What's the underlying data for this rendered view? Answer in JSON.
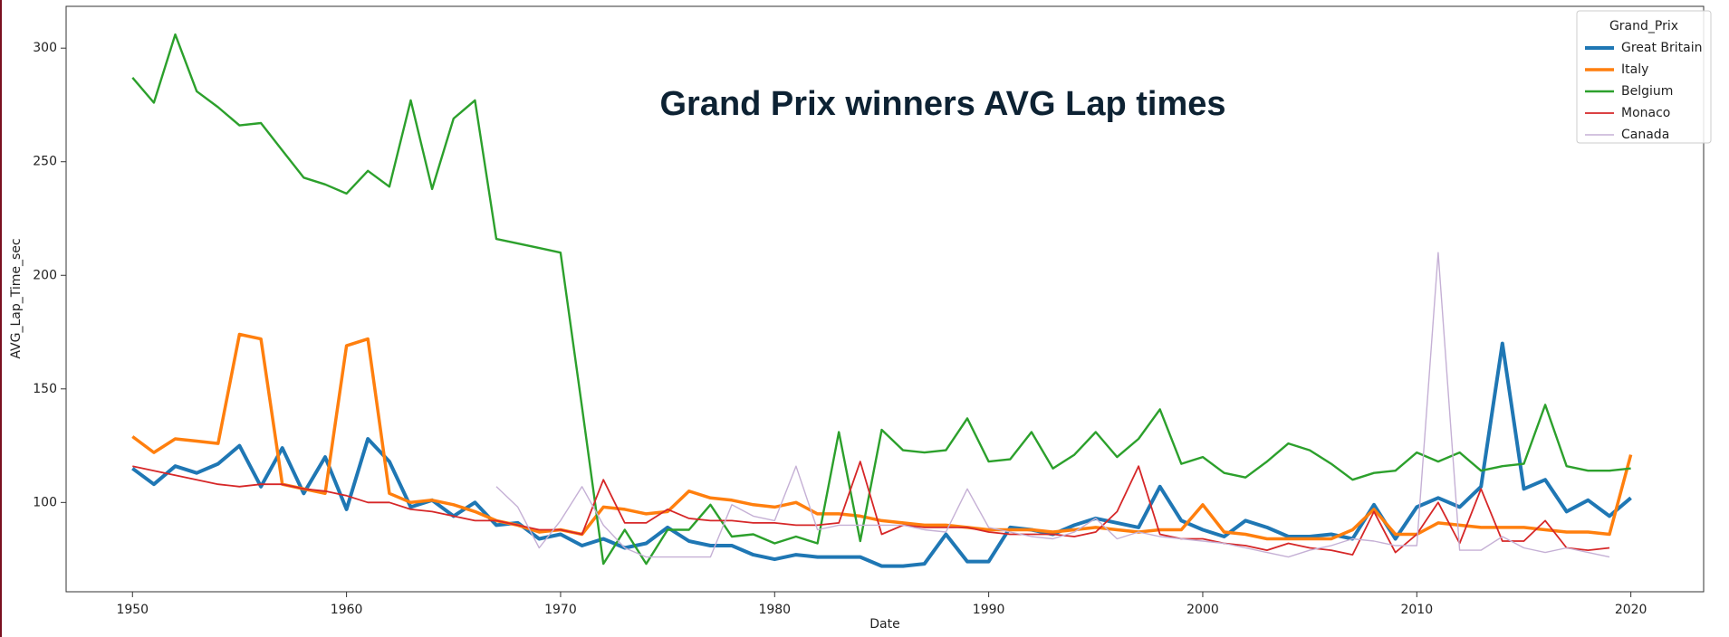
{
  "chart_data": {
    "type": "line",
    "title": "Grand Prix winners AVG Lap times",
    "x_label": "Date",
    "y_label": "AVG_Lap_Time_sec",
    "legend_title": "Grand_Prix",
    "legend": "upper right",
    "xlim": [
      1946.9,
      2023.4
    ],
    "ylim": [
      60.7,
      318.4
    ],
    "xticks": [
      1950,
      1960,
      1970,
      1980,
      1990,
      2000,
      2010,
      2020
    ],
    "yticks": [
      100,
      150,
      200,
      250,
      300
    ],
    "x": [
      1950,
      1951,
      1952,
      1953,
      1954,
      1955,
      1956,
      1957,
      1958,
      1959,
      1960,
      1961,
      1962,
      1963,
      1964,
      1965,
      1966,
      1967,
      1968,
      1969,
      1970,
      1971,
      1972,
      1973,
      1974,
      1975,
      1976,
      1977,
      1978,
      1979,
      1980,
      1981,
      1982,
      1983,
      1984,
      1985,
      1986,
      1987,
      1988,
      1989,
      1990,
      1991,
      1992,
      1993,
      1994,
      1995,
      1996,
      1997,
      1998,
      1999,
      2000,
      2001,
      2002,
      2003,
      2004,
      2005,
      2006,
      2007,
      2008,
      2009,
      2010,
      2011,
      2012,
      2013,
      2014,
      2015,
      2016,
      2017,
      2018,
      2019,
      2020
    ],
    "series": [
      {
        "name": "Great Britain",
        "color": "#1f77b4",
        "values": [
          115,
          108,
          116,
          113,
          117,
          125,
          107,
          124,
          104,
          120,
          97,
          128,
          118,
          98,
          101,
          94,
          100,
          90,
          91,
          84,
          86,
          81,
          84,
          80,
          82,
          89,
          83,
          81,
          81,
          77,
          75,
          77,
          76,
          76,
          76,
          72,
          72,
          73,
          86,
          74,
          74,
          89,
          88,
          86,
          90,
          93,
          91,
          89,
          107,
          92,
          88,
          85,
          92,
          89,
          85,
          85,
          86,
          84,
          99,
          84,
          98,
          102,
          98,
          107,
          170,
          106,
          110,
          96,
          101,
          94,
          102
        ]
      },
      {
        "name": "Italy",
        "color": "#ff7f0e",
        "values": [
          129,
          122,
          128,
          127,
          126,
          174,
          172,
          108,
          106,
          104,
          169,
          172,
          104,
          100,
          101,
          99,
          96,
          92,
          90,
          87,
          88,
          86,
          98,
          97,
          95,
          96,
          105,
          102,
          101,
          99,
          98,
          100,
          95,
          95,
          94,
          92,
          91,
          90,
          90,
          89,
          88,
          88,
          88,
          87,
          88,
          89,
          88,
          87,
          88,
          88,
          99,
          87,
          86,
          84,
          84,
          84,
          84,
          88,
          97,
          86,
          86,
          91,
          90,
          89,
          89,
          89,
          88,
          87,
          87,
          86,
          121
        ]
      },
      {
        "name": "Belgium",
        "color": "#2ca02c",
        "values": [
          287,
          276,
          306,
          281,
          274,
          266,
          267,
          255,
          243,
          240,
          236,
          246,
          239,
          277,
          238,
          269,
          277,
          216,
          214,
          212,
          210,
          142,
          73,
          88,
          73,
          88,
          88,
          99,
          85,
          86,
          82,
          85,
          82,
          131,
          83,
          132,
          123,
          122,
          123,
          137,
          118,
          119,
          131,
          115,
          121,
          131,
          120,
          128,
          141,
          117,
          120,
          113,
          111,
          118,
          126,
          123,
          117,
          110,
          113,
          114,
          122,
          118,
          122,
          114,
          116,
          117,
          143,
          116,
          114,
          114,
          115
        ]
      },
      {
        "name": "Monaco",
        "color": "#d62728",
        "values": [
          116,
          114,
          112,
          110,
          108,
          107,
          108,
          108,
          106,
          105,
          103,
          100,
          100,
          97,
          96,
          94,
          92,
          92,
          90,
          88,
          88,
          86,
          110,
          91,
          91,
          97,
          93,
          92,
          92,
          91,
          91,
          90,
          90,
          91,
          118,
          86,
          90,
          89,
          89,
          89,
          87,
          86,
          86,
          86,
          85,
          87,
          96,
          116,
          86,
          84,
          84,
          82,
          81,
          79,
          82,
          80,
          79,
          77,
          96,
          78,
          86,
          100,
          82,
          106,
          83,
          83,
          92,
          80,
          79,
          80,
          null
        ]
      },
      {
        "name": "Canada",
        "color": "#c5b0d5",
        "values": [
          null,
          null,
          null,
          null,
          null,
          null,
          null,
          null,
          null,
          null,
          null,
          null,
          null,
          null,
          null,
          null,
          null,
          107,
          98,
          80,
          92,
          107,
          90,
          80,
          76,
          76,
          76,
          76,
          99,
          94,
          92,
          116,
          88,
          90,
          90,
          90,
          90,
          88,
          87,
          106,
          89,
          87,
          85,
          84,
          87,
          93,
          84,
          87,
          85,
          84,
          83,
          82,
          80,
          78,
          76,
          79,
          81,
          84,
          83,
          81,
          81,
          210,
          79,
          79,
          85,
          80,
          78,
          80,
          78,
          76,
          null
        ]
      }
    ]
  }
}
